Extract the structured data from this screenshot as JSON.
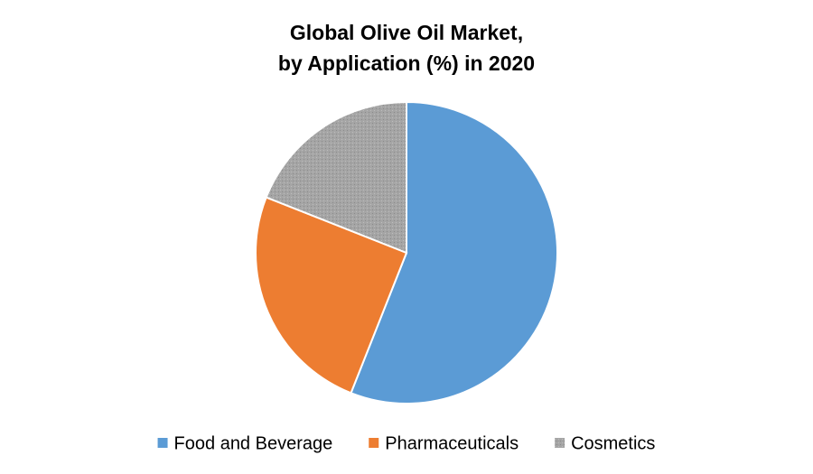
{
  "chart_data": {
    "type": "pie",
    "title": [
      "Global Olive Oil Market,",
      "by Application (%) in 2020"
    ],
    "categories": [
      "Food and Beverage",
      "Pharmaceuticals",
      "Cosmetics"
    ],
    "values": [
      56,
      25,
      19
    ],
    "colors": [
      "#5b9bd5",
      "#ed7d31",
      "#a5a5a5"
    ],
    "legend": "bottom"
  }
}
